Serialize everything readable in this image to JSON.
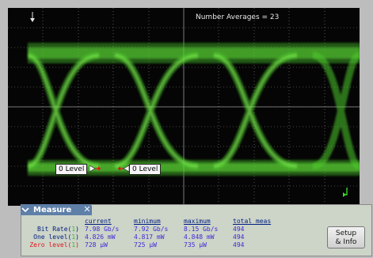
{
  "readout": {
    "number_averages": "Number Averages =  23"
  },
  "level_markers": {
    "left": "0 Level",
    "right": "0 Level"
  },
  "measure": {
    "tab_label": "Measure",
    "close_glyph": "✕",
    "columns": [
      "current",
      "minimum",
      "maximum",
      "total meas"
    ],
    "rows": [
      {
        "label": "Bit Rate(",
        "source": "1",
        "label_end": ")",
        "current": "7.98 Gb/s",
        "minimum": "7.92 Gb/s",
        "maximum": "8.15 Gb/s",
        "total": "494",
        "label_color": "#001e82",
        "value_color": "#3a2bd6"
      },
      {
        "label": "One level(",
        "source": "1",
        "label_end": ")",
        "current": "4.826 mW",
        "minimum": "4.817 mW",
        "maximum": "4.848 mW",
        "total": "494",
        "label_color": "#001e82",
        "value_color": "#3a2bd6"
      },
      {
        "label": "Zero level(",
        "source": "1",
        "label_end": ")",
        "current": "728 µW",
        "minimum": "725 µW",
        "maximum": "735 µW",
        "total": "494",
        "label_color": "#e0141b",
        "value_color": "#3a2bd6"
      }
    ],
    "source_color": "#2fbf24"
  },
  "setup_button": {
    "line1": "Setup",
    "line2": "& Info"
  },
  "colors": {
    "trace": "#55e02c",
    "screen_bg": "#050505",
    "graticule": "#9a9a9a"
  },
  "icons": {
    "trigger": "down-arrow-marker-icon",
    "channel": "channel-marker-icon",
    "tab": "chevron-down-icon"
  }
}
